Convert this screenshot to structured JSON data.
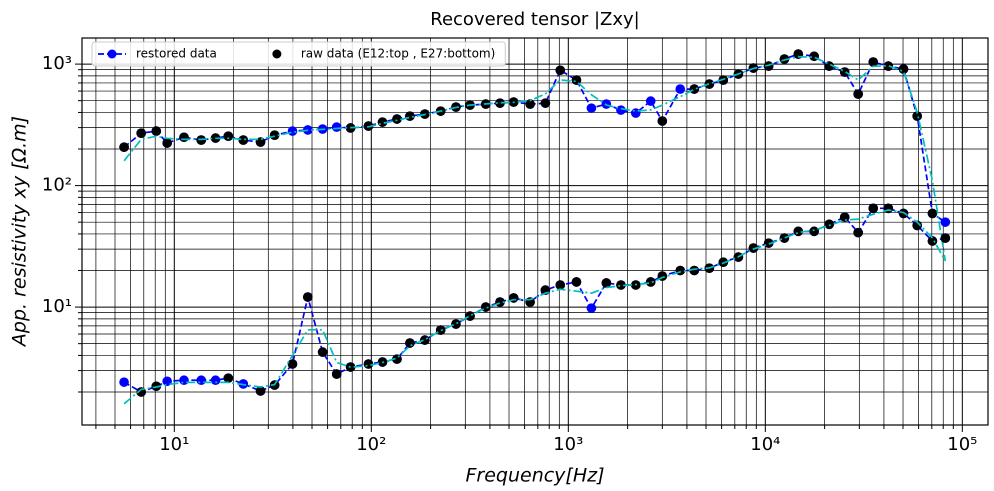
{
  "chart_data": {
    "type": "line",
    "title": "Recovered tensor |Zxy|",
    "xlabel": "Frequency[Hz]",
    "ylabel": "App. resistivity   xy   [Ω.m]",
    "xscale": "log",
    "yscale": "log",
    "grid": true,
    "minor_grid": true,
    "legend": "upper left",
    "xlim": [
      3.4,
      135000
    ],
    "ylim": [
      1.07,
      1640
    ],
    "xticks": [
      {
        "value": 10,
        "label": "10¹"
      },
      {
        "value": 100,
        "label": "10²"
      },
      {
        "value": 1000,
        "label": "10³"
      },
      {
        "value": 10000,
        "label": "10⁴"
      },
      {
        "value": 100000,
        "label": "10⁵"
      }
    ],
    "yticks": [
      {
        "value": 10,
        "label": "10¹"
      },
      {
        "value": 100,
        "label": "10²"
      },
      {
        "value": 1000,
        "label": "10³"
      }
    ],
    "x": [
      5.56,
      6.79,
      8.1,
      9.2,
      11.2,
      13.7,
      16.2,
      18.8,
      22.4,
      27.4,
      32.3,
      39.8,
      47.6,
      56.6,
      66.7,
      78.5,
      96.7,
      114,
      135,
      157,
      187,
      225,
      269,
      317,
      381,
      450,
      528,
      640,
      765,
      910,
      1100,
      1310,
      1560,
      1850,
      2200,
      2620,
      3000,
      3700,
      4360,
      5200,
      6120,
      7300,
      8700,
      10400,
      12500,
      14700,
      17700,
      21100,
      25300,
      29600,
      35300,
      42100,
      50300,
      59000,
      70500,
      82000
    ],
    "series": [
      {
        "name": "restored data",
        "color": "#0000ff",
        "linestyle": "dashed",
        "marker": "circle",
        "values": [
          207,
          270,
          281,
          224,
          250,
          237,
          246,
          255,
          237,
          228,
          260,
          281,
          287,
          292,
          303,
          298,
          309,
          333,
          353,
          373,
          388,
          410,
          443,
          460,
          469,
          477,
          487,
          469,
          477,
          890,
          739,
          434,
          469,
          418,
          395,
          496,
          340,
          623,
          623,
          685,
          739,
          828,
          927,
          963,
          1100,
          1210,
          1160,
          963,
          860,
          566,
          1040,
          963,
          910,
          373,
          59,
          50
        ]
      },
      {
        "name": "raw data (E12:top , E27:bottom)",
        "color": "#000000",
        "linestyle": "none",
        "marker": "circle",
        "values": [
          207,
          270,
          281,
          224,
          250,
          237,
          246,
          255,
          237,
          228,
          260,
          null,
          null,
          null,
          null,
          298,
          309,
          333,
          353,
          373,
          388,
          410,
          443,
          460,
          469,
          477,
          487,
          469,
          477,
          890,
          739,
          null,
          null,
          null,
          null,
          null,
          340,
          null,
          623,
          685,
          739,
          828,
          927,
          963,
          1100,
          1210,
          1160,
          963,
          860,
          566,
          1040,
          963,
          910,
          373,
          59,
          null
        ]
      },
      {
        "color": "#00bfbf",
        "linestyle": "dashdot",
        "marker": "none",
        "values": [
          160,
          240,
          255,
          245,
          240,
          240,
          245,
          245,
          240,
          240,
          255,
          275,
          285,
          290,
          295,
          300,
          305,
          325,
          345,
          365,
          385,
          410,
          440,
          460,
          470,
          480,
          485,
          500,
          570,
          740,
          720,
          560,
          460,
          430,
          410,
          420,
          460,
          540,
          620,
          690,
          750,
          830,
          920,
          980,
          1080,
          1150,
          1140,
          1000,
          870,
          740,
          960,
          970,
          870,
          400,
          110,
          24
        ]
      },
      {
        "color": "#0000ff",
        "linestyle": "dashed",
        "marker": "circle",
        "values": [
          2.41,
          2.0,
          2.23,
          2.45,
          2.5,
          2.5,
          2.5,
          2.6,
          2.33,
          2.04,
          2.28,
          3.4,
          12.1,
          4.26,
          2.81,
          3.21,
          3.4,
          3.53,
          3.73,
          5.06,
          5.35,
          6.47,
          7.25,
          8.43,
          10,
          11,
          11.9,
          11,
          13.8,
          15.2,
          16.1,
          9.8,
          15.8,
          15.2,
          15.2,
          16.1,
          18,
          20,
          20,
          20.9,
          23.4,
          25.8,
          30.6,
          33.6,
          37,
          42,
          42,
          48,
          55,
          41,
          65,
          65,
          59,
          47,
          35,
          37
        ]
      },
      {
        "color": "#000000",
        "linestyle": "none",
        "marker": "circle",
        "values": [
          null,
          2.0,
          2.23,
          null,
          null,
          null,
          null,
          2.6,
          null,
          2.04,
          2.28,
          3.4,
          12.1,
          4.26,
          2.81,
          3.21,
          3.4,
          3.53,
          3.73,
          5.06,
          5.35,
          6.47,
          7.25,
          8.43,
          10,
          11,
          11.9,
          11,
          13.8,
          15.2,
          16.1,
          null,
          15.8,
          15.2,
          15.2,
          16.1,
          18,
          20,
          20,
          20.9,
          23.4,
          25.8,
          30.6,
          33.6,
          37,
          42,
          42,
          48,
          55,
          41,
          65,
          65,
          59,
          47,
          35,
          37
        ]
      },
      {
        "color": "#00bfbf",
        "linestyle": "dashdot",
        "marker": "none",
        "values": [
          1.6,
          2.1,
          2.2,
          2.3,
          2.4,
          2.4,
          2.4,
          2.4,
          2.3,
          2.2,
          2.3,
          4,
          6.5,
          6.5,
          3.5,
          3.2,
          3.3,
          3.5,
          3.8,
          4.8,
          5.4,
          6.4,
          7.3,
          8.5,
          9.8,
          10.8,
          11.5,
          11.5,
          13,
          14,
          13.5,
          13,
          14.5,
          15,
          15.3,
          15.8,
          17.5,
          19.5,
          20.5,
          21,
          23,
          26,
          30,
          33,
          37,
          41,
          43,
          47,
          52,
          53,
          58,
          63,
          60,
          50,
          37,
          24
        ]
      }
    ]
  }
}
